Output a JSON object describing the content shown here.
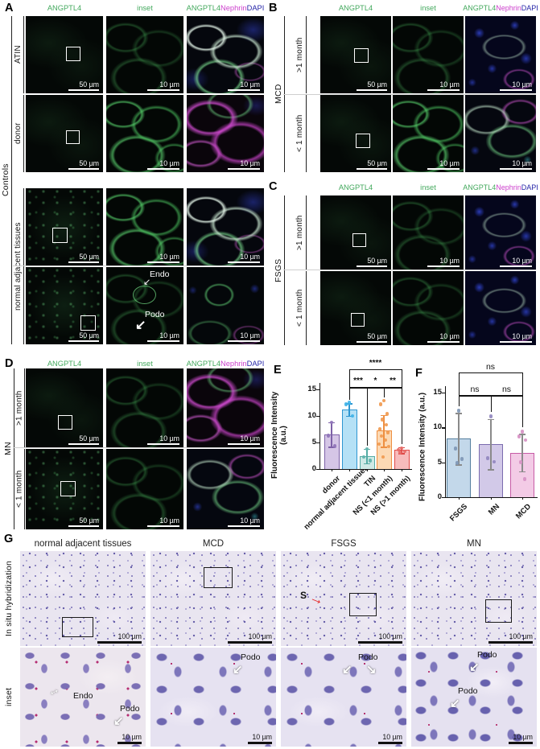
{
  "panels": {
    "A": {
      "letter": "A",
      "group": "Controls",
      "rows": [
        "ATIN",
        "donor",
        "normal adjacent tissues"
      ]
    },
    "B": {
      "letter": "B",
      "group": "MCD",
      "rows": [
        ">1 month",
        "< 1 month"
      ]
    },
    "C": {
      "letter": "C",
      "group": "FSGS",
      "rows": [
        ">1 month",
        "< 1 month"
      ]
    },
    "D": {
      "letter": "D",
      "group": "MN",
      "rows": [
        ">1 month",
        "< 1 month"
      ]
    },
    "E": {
      "letter": "E"
    },
    "F": {
      "letter": "F"
    },
    "G": {
      "letter": "G",
      "row_labels": [
        "In situ hybridization",
        "inset"
      ],
      "col_headers": [
        "normal adjacent tissues",
        "MCD",
        "FSGS",
        "MN"
      ]
    }
  },
  "stain_headers": {
    "angptl4": "ANGPTL4",
    "inset": "inset",
    "nephrin": "Nephrin",
    "dapi": "DAPI"
  },
  "stain_colors": {
    "angptl4": "#44a95e",
    "nephrin": "#cc3fcc",
    "dapi": "#2525a8"
  },
  "scale_labels": {
    "s50": "50 µm",
    "s10": "10 µm",
    "s100": "100 µm"
  },
  "annotations": {
    "endo": "Endo",
    "podo": "Podo",
    "sclerosis": "S"
  },
  "chart_data": [
    {
      "id": "E",
      "type": "bar",
      "ylabel": "Fluorescence Intensity (a.u.)",
      "ylim": [
        0,
        15
      ],
      "yticks": [
        0,
        5,
        10,
        15
      ],
      "categories": [
        "donor",
        "normal adjacent tissues",
        "TIN",
        "NS (<1 month)",
        "NS (>1 month)"
      ],
      "values": [
        6.5,
        11.2,
        2.4,
        7.2,
        3.6
      ],
      "err_low": [
        4.2,
        10.0,
        1.1,
        4.2,
        3.0
      ],
      "err_high": [
        8.8,
        12.4,
        3.8,
        10.2,
        4.1
      ],
      "points": [
        [
          8.8,
          6.3,
          4.3
        ],
        [
          12.5,
          12.2,
          10.0
        ],
        [
          3.8,
          2.3,
          1.6
        ],
        [
          12.9,
          12.2,
          10.4,
          9.3,
          8.3,
          7.5,
          6.9,
          6.2,
          5.5,
          4.7,
          4.2,
          2.3
        ],
        [
          3.9,
          3.6,
          3.3,
          3.1
        ]
      ],
      "bar_fill": [
        "#d5c6e6",
        "#b5e1f6",
        "#cfeae6",
        "#fcd9b4",
        "#f7bcbc"
      ],
      "bar_stroke": [
        "#7e62a8",
        "#2d96d1",
        "#54aca4",
        "#ee8f41",
        "#e04a47"
      ],
      "point_color": [
        "#8f74b8",
        "#3fb3e8",
        "#5fb3ab",
        "#f09a50",
        "#e66c68"
      ],
      "bracket_levels": [
        15.4,
        18.8
      ],
      "comparisons": [
        {
          "from": 1,
          "to": 2,
          "label": "***",
          "level": 0
        },
        {
          "from": 2,
          "to": 3,
          "label": "*",
          "level": 0
        },
        {
          "from": 3,
          "to": 4,
          "label": "**",
          "level": 0
        },
        {
          "from": 1,
          "to": 4,
          "label": "****",
          "level": 1
        }
      ],
      "grid": false,
      "legend": false
    },
    {
      "id": "F",
      "type": "bar",
      "ylabel": "Fluorescence Intensity (a.u.)",
      "ylim": [
        0,
        15
      ],
      "yticks": [
        0,
        5,
        10,
        15
      ],
      "categories": [
        "FSGS",
        "MN",
        "MCD"
      ],
      "values": [
        8.4,
        7.6,
        6.4
      ],
      "err_low": [
        4.7,
        4.0,
        3.7
      ],
      "err_high": [
        12.1,
        11.2,
        9.1
      ],
      "points": [
        [
          12.4,
          7.0,
          5.5,
          4.9
        ],
        [
          11.6,
          5.6,
          5.1
        ],
        [
          9.4,
          8.7,
          8.2,
          5.0,
          2.6
        ]
      ],
      "bar_fill": [
        "#c3d8ea",
        "#d2c9e8",
        "#f3cbe6"
      ],
      "bar_stroke": [
        "#55809f",
        "#7b6cae",
        "#c75ca6"
      ],
      "point_color": [
        "#7f97b5",
        "#9187bf",
        "#d791c4"
      ],
      "bracket_levels": [
        14.6,
        17.9
      ],
      "comparisons": [
        {
          "from": 0,
          "to": 1,
          "label": "ns",
          "level": 0
        },
        {
          "from": 1,
          "to": 2,
          "label": "ns",
          "level": 0
        },
        {
          "from": 0,
          "to": 2,
          "label": "ns",
          "level": 1
        }
      ],
      "grid": false,
      "legend": false
    }
  ]
}
